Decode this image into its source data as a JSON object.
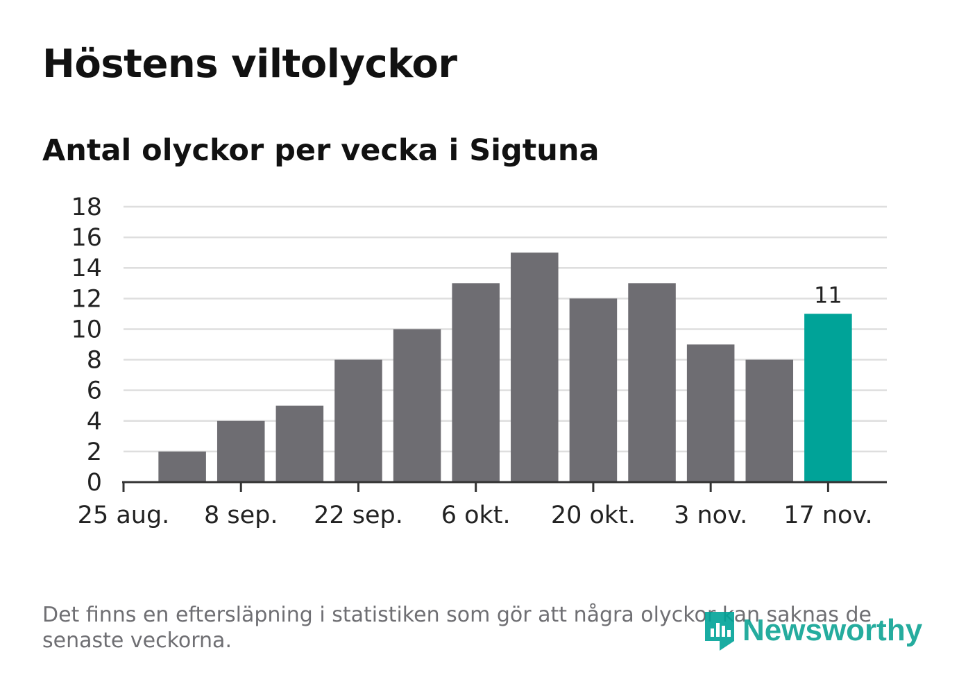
{
  "title": "Höstens viltolyckor",
  "subtitle": "Antal olyckor per vecka i Sigtuna",
  "footnote": "Det finns en eftersläpning i statistiken som gör att några olyckor kan saknas de senaste veckorna.",
  "brand": {
    "name": "Newsworthy",
    "icon": "newsworthy-logo-icon"
  },
  "colors": {
    "bar": "#6e6d72",
    "highlight": "#00a398",
    "grid": "#dedede",
    "axis": "#333333"
  },
  "chart_data": {
    "type": "bar",
    "title": "Antal olyckor per vecka i Sigtuna",
    "xlabel": "",
    "ylabel": "",
    "ylim": [
      0,
      18
    ],
    "yticks": [
      0,
      2,
      4,
      6,
      8,
      10,
      12,
      14,
      16,
      18
    ],
    "xtick_labels": [
      "25 aug.",
      "8 sep.",
      "22 sep.",
      "6 okt.",
      "20 okt.",
      "3 nov.",
      "17 nov."
    ],
    "grid": true,
    "bars": [
      {
        "week": 1,
        "value": 2
      },
      {
        "week": 2,
        "value": 4
      },
      {
        "week": 3,
        "value": 5
      },
      {
        "week": 4,
        "value": 8
      },
      {
        "week": 5,
        "value": 10
      },
      {
        "week": 6,
        "value": 13
      },
      {
        "week": 7,
        "value": 15
      },
      {
        "week": 8,
        "value": 12
      },
      {
        "week": 9,
        "value": 13
      },
      {
        "week": 10,
        "value": 9
      },
      {
        "week": 11,
        "value": 8
      },
      {
        "week": 12,
        "value": 11,
        "highlight": true,
        "label": "11"
      }
    ]
  }
}
